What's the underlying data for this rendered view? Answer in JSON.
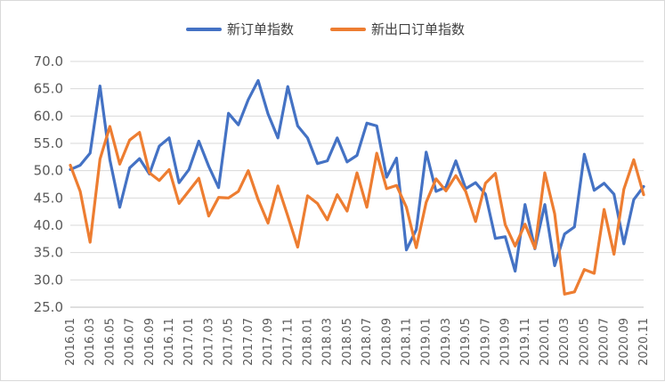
{
  "chart_data": {
    "type": "line",
    "title": "",
    "xlabel": "",
    "ylabel": "",
    "ylim": [
      25.0,
      70.0
    ],
    "yticks": [
      "70.0",
      "65.0",
      "60.0",
      "55.0",
      "50.0",
      "45.0",
      "40.0",
      "35.0",
      "30.0",
      "25.0"
    ],
    "grid": "horizontal",
    "legend_position": "top-center",
    "x": [
      "2016.01",
      "2016.02",
      "2016.03",
      "2016.04",
      "2016.05",
      "2016.06",
      "2016.07",
      "2016.08",
      "2016.09",
      "2016.10",
      "2016.11",
      "2016.12",
      "2017.01",
      "2017.02",
      "2017.03",
      "2017.04",
      "2017.05",
      "2017.06",
      "2017.07",
      "2017.08",
      "2017.09",
      "2017.10",
      "2017.11",
      "2017.12",
      "2018.01",
      "2018.02",
      "2018.03",
      "2018.04",
      "2018.05",
      "2018.06",
      "2018.07",
      "2018.08",
      "2018.09",
      "2018.10",
      "2018.11",
      "2018.12",
      "2019.01",
      "2019.02",
      "2019.03",
      "2019.04",
      "2019.05",
      "2019.06",
      "2019.07",
      "2019.08",
      "2019.09",
      "2019.10",
      "2019.11",
      "2019.12",
      "2020.01",
      "2020.02",
      "2020.03",
      "2020.04",
      "2020.05",
      "2020.06",
      "2020.07",
      "2020.08",
      "2020.09",
      "2020.10",
      "2020.11"
    ],
    "x_tick_labels": [
      "2016.01",
      "2016.03",
      "2016.05",
      "2016.07",
      "2016.09",
      "2016.11",
      "2017.01",
      "2017.03",
      "2017.05",
      "2017.07",
      "2017.09",
      "2017.11",
      "2018.01",
      "2018.03",
      "2018.05",
      "2018.07",
      "2018.09",
      "2018.11",
      "2019.01",
      "2019.03",
      "2019.05",
      "2019.07",
      "2019.09",
      "2019.11",
      "2020.01",
      "2020.03",
      "2020.05",
      "2020.07",
      "2020.09",
      "2020.11"
    ],
    "series": [
      {
        "name": "新订单指数",
        "color": "#4472C4",
        "values": [
          50.2,
          51.0,
          53.2,
          65.5,
          52.0,
          43.3,
          50.5,
          52.2,
          49.4,
          54.5,
          56.0,
          47.8,
          50.2,
          55.4,
          50.8,
          46.9,
          60.5,
          58.4,
          63.0,
          66.5,
          60.4,
          56.0,
          65.4,
          58.2,
          56.0,
          51.3,
          51.8,
          56.0,
          51.6,
          52.8,
          58.7,
          58.2,
          48.8,
          52.3,
          35.5,
          39.2,
          53.4,
          46.2,
          47.0,
          51.8,
          46.7,
          47.8,
          45.7,
          37.6,
          37.9,
          31.6,
          43.8,
          35.7,
          43.8,
          32.6,
          38.4,
          39.7,
          53.0,
          46.4,
          47.7,
          45.7,
          36.6,
          44.7,
          47.1
        ]
      },
      {
        "name": "新出口订单指数",
        "color": "#ED7D31",
        "values": [
          51.0,
          46.2,
          36.9,
          52.1,
          58.1,
          51.2,
          55.6,
          57.0,
          49.6,
          48.2,
          50.2,
          44.0,
          46.3,
          48.6,
          41.7,
          45.1,
          45.0,
          46.2,
          50.0,
          44.7,
          40.4,
          47.2,
          41.7,
          36.0,
          45.4,
          44.0,
          41.0,
          45.6,
          42.6,
          49.6,
          43.3,
          53.2,
          46.7,
          47.3,
          43.3,
          35.9,
          44.2,
          48.5,
          46.3,
          49.1,
          46.2,
          40.7,
          47.7,
          49.5,
          40.1,
          36.2,
          40.2,
          35.8,
          49.6,
          42.1,
          27.4,
          27.8,
          31.9,
          31.2,
          42.9,
          34.7,
          46.6,
          52.0,
          45.6
        ]
      }
    ]
  }
}
